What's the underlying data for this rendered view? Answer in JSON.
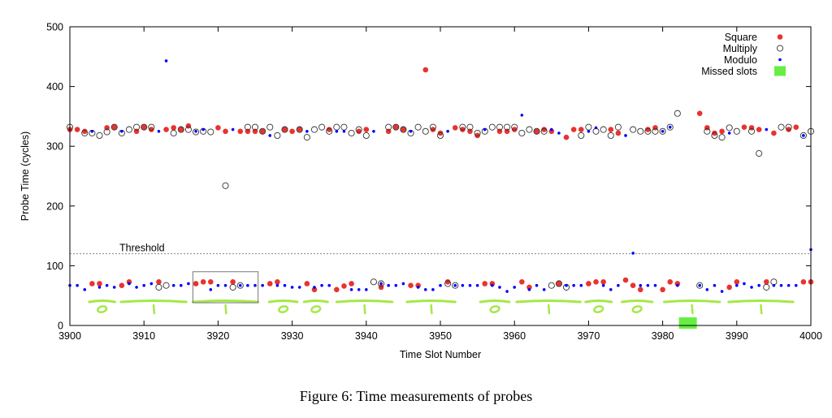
{
  "chart_data": {
    "type": "scatter",
    "title": "",
    "xlabel": "Time Slot Number",
    "ylabel": "Probe Time (cycles)",
    "xlim": [
      3900,
      4000
    ],
    "ylim": [
      0,
      500
    ],
    "x_ticks": [
      "3900",
      "3910",
      "3920",
      "3930",
      "3940",
      "3950",
      "3960",
      "3970",
      "3980",
      "3990",
      "4000"
    ],
    "y_ticks": [
      "0",
      "100",
      "200",
      "300",
      "400",
      "500"
    ],
    "grid": false,
    "legend_position": "top-right",
    "threshold": {
      "label": "Threshold",
      "value": 120
    },
    "series": [
      {
        "name": "Square",
        "marker": "filled-circle",
        "color": "#e8332f",
        "points": [
          [
            3900,
            328
          ],
          [
            3901,
            328
          ],
          [
            3902,
            325
          ],
          [
            3905,
            331
          ],
          [
            3906,
            332
          ],
          [
            3909,
            325
          ],
          [
            3910,
            332
          ],
          [
            3911,
            328
          ],
          [
            3913,
            328
          ],
          [
            3914,
            331
          ],
          [
            3915,
            328
          ],
          [
            3916,
            334
          ],
          [
            3920,
            331
          ],
          [
            3921,
            325
          ],
          [
            3923,
            325
          ],
          [
            3924,
            325
          ],
          [
            3925,
            325
          ],
          [
            3926,
            325
          ],
          [
            3929,
            328
          ],
          [
            3930,
            325
          ],
          [
            3931,
            328
          ],
          [
            3935,
            328
          ],
          [
            3939,
            325
          ],
          [
            3940,
            328
          ],
          [
            3943,
            325
          ],
          [
            3944,
            332
          ],
          [
            3945,
            328
          ],
          [
            3948,
            428
          ],
          [
            3949,
            328
          ],
          [
            3950,
            322
          ],
          [
            3952,
            331
          ],
          [
            3953,
            328
          ],
          [
            3954,
            325
          ],
          [
            3955,
            318
          ],
          [
            3958,
            325
          ],
          [
            3959,
            325
          ],
          [
            3960,
            328
          ],
          [
            3963,
            325
          ],
          [
            3964,
            328
          ],
          [
            3965,
            325
          ],
          [
            3967,
            315
          ],
          [
            3968,
            328
          ],
          [
            3969,
            328
          ],
          [
            3973,
            328
          ],
          [
            3974,
            322
          ],
          [
            3978,
            328
          ],
          [
            3979,
            331
          ],
          [
            3985,
            355
          ],
          [
            3986,
            331
          ],
          [
            3987,
            322
          ],
          [
            3988,
            325
          ],
          [
            3991,
            332
          ],
          [
            3992,
            331
          ],
          [
            3993,
            328
          ],
          [
            3995,
            322
          ],
          [
            3997,
            328
          ],
          [
            3998,
            332
          ],
          [
            3903,
            70
          ],
          [
            3904,
            70
          ],
          [
            3907,
            67
          ],
          [
            3908,
            73
          ],
          [
            3912,
            73
          ],
          [
            3917,
            70
          ],
          [
            3918,
            73
          ],
          [
            3919,
            73
          ],
          [
            3922,
            73
          ],
          [
            3927,
            70
          ],
          [
            3928,
            73
          ],
          [
            3932,
            70
          ],
          [
            3933,
            60
          ],
          [
            3936,
            60
          ],
          [
            3937,
            66
          ],
          [
            3938,
            70
          ],
          [
            3942,
            64
          ],
          [
            3946,
            67
          ],
          [
            3947,
            67
          ],
          [
            3951,
            73
          ],
          [
            3956,
            70
          ],
          [
            3957,
            70
          ],
          [
            3961,
            73
          ],
          [
            3962,
            64
          ],
          [
            3966,
            70
          ],
          [
            3970,
            70
          ],
          [
            3971,
            73
          ],
          [
            3972,
            73
          ],
          [
            3975,
            76
          ],
          [
            3976,
            67
          ],
          [
            3977,
            60
          ],
          [
            3980,
            60
          ],
          [
            3981,
            73
          ],
          [
            3982,
            70
          ],
          [
            3989,
            64
          ],
          [
            3990,
            73
          ],
          [
            3994,
            73
          ],
          [
            3999,
            73
          ],
          [
            4000,
            73
          ]
        ]
      },
      {
        "name": "Multiply",
        "marker": "open-circle",
        "color": "#333333",
        "points": [
          [
            3900,
            332
          ],
          [
            3902,
            322
          ],
          [
            3903,
            322
          ],
          [
            3904,
            318
          ],
          [
            3905,
            324
          ],
          [
            3906,
            332
          ],
          [
            3907,
            322
          ],
          [
            3908,
            328
          ],
          [
            3909,
            332
          ],
          [
            3910,
            332
          ],
          [
            3911,
            332
          ],
          [
            3914,
            322
          ],
          [
            3915,
            328
          ],
          [
            3916,
            328
          ],
          [
            3917,
            324
          ],
          [
            3918,
            325
          ],
          [
            3919,
            324
          ],
          [
            3921,
            234
          ],
          [
            3924,
            332
          ],
          [
            3925,
            332
          ],
          [
            3926,
            325
          ],
          [
            3927,
            332
          ],
          [
            3928,
            318
          ],
          [
            3929,
            328
          ],
          [
            3931,
            328
          ],
          [
            3932,
            315
          ],
          [
            3933,
            328
          ],
          [
            3934,
            332
          ],
          [
            3935,
            325
          ],
          [
            3936,
            332
          ],
          [
            3937,
            332
          ],
          [
            3938,
            322
          ],
          [
            3939,
            328
          ],
          [
            3940,
            318
          ],
          [
            3943,
            332
          ],
          [
            3944,
            332
          ],
          [
            3945,
            328
          ],
          [
            3946,
            322
          ],
          [
            3947,
            332
          ],
          [
            3948,
            325
          ],
          [
            3949,
            332
          ],
          [
            3950,
            318
          ],
          [
            3953,
            332
          ],
          [
            3954,
            332
          ],
          [
            3955,
            322
          ],
          [
            3956,
            325
          ],
          [
            3957,
            332
          ],
          [
            3958,
            332
          ],
          [
            3959,
            332
          ],
          [
            3960,
            332
          ],
          [
            3961,
            322
          ],
          [
            3962,
            328
          ],
          [
            3963,
            325
          ],
          [
            3964,
            325
          ],
          [
            3969,
            318
          ],
          [
            3970,
            332
          ],
          [
            3971,
            325
          ],
          [
            3972,
            328
          ],
          [
            3973,
            318
          ],
          [
            3974,
            332
          ],
          [
            3976,
            328
          ],
          [
            3977,
            325
          ],
          [
            3978,
            325
          ],
          [
            3979,
            325
          ],
          [
            3980,
            325
          ],
          [
            3981,
            332
          ],
          [
            3982,
            355
          ],
          [
            3986,
            325
          ],
          [
            3987,
            318
          ],
          [
            3988,
            315
          ],
          [
            3989,
            331
          ],
          [
            3990,
            325
          ],
          [
            3992,
            325
          ],
          [
            3993,
            288
          ],
          [
            3996,
            332
          ],
          [
            3997,
            332
          ],
          [
            3999,
            318
          ],
          [
            4000,
            325
          ],
          [
            3912,
            64
          ],
          [
            3913,
            67
          ],
          [
            3922,
            64
          ],
          [
            3923,
            67
          ],
          [
            3941,
            73
          ],
          [
            3942,
            70
          ],
          [
            3951,
            70
          ],
          [
            3952,
            67
          ],
          [
            3965,
            67
          ],
          [
            3966,
            70
          ],
          [
            3967,
            64
          ],
          [
            3985,
            67
          ],
          [
            3994,
            64
          ],
          [
            3995,
            73
          ]
        ]
      },
      {
        "name": "Modulo",
        "marker": "dot",
        "color": "#0000ff",
        "points": [
          [
            3903,
            325
          ],
          [
            3907,
            325
          ],
          [
            3912,
            325
          ],
          [
            3913,
            443
          ],
          [
            3917,
            325
          ],
          [
            3918,
            328
          ],
          [
            3922,
            328
          ],
          [
            3927,
            318
          ],
          [
            3932,
            325
          ],
          [
            3936,
            325
          ],
          [
            3937,
            325
          ],
          [
            3941,
            325
          ],
          [
            3946,
            325
          ],
          [
            3951,
            325
          ],
          [
            3956,
            328
          ],
          [
            3961,
            352
          ],
          [
            3965,
            328
          ],
          [
            3966,
            322
          ],
          [
            3970,
            325
          ],
          [
            3971,
            331
          ],
          [
            3975,
            318
          ],
          [
            3976,
            121
          ],
          [
            3980,
            325
          ],
          [
            3981,
            332
          ],
          [
            3989,
            322
          ],
          [
            3994,
            328
          ],
          [
            3999,
            318
          ],
          [
            4000,
            127
          ],
          [
            3900,
            67
          ],
          [
            3901,
            67
          ],
          [
            3902,
            60
          ],
          [
            3904,
            64
          ],
          [
            3905,
            67
          ],
          [
            3906,
            64
          ],
          [
            3908,
            70
          ],
          [
            3909,
            64
          ],
          [
            3910,
            67
          ],
          [
            3911,
            70
          ],
          [
            3914,
            67
          ],
          [
            3915,
            67
          ],
          [
            3916,
            70
          ],
          [
            3919,
            60
          ],
          [
            3920,
            67
          ],
          [
            3921,
            67
          ],
          [
            3923,
            67
          ],
          [
            3924,
            67
          ],
          [
            3925,
            67
          ],
          [
            3926,
            67
          ],
          [
            3928,
            67
          ],
          [
            3929,
            67
          ],
          [
            3930,
            64
          ],
          [
            3931,
            64
          ],
          [
            3933,
            64
          ],
          [
            3934,
            67
          ],
          [
            3935,
            67
          ],
          [
            3938,
            60
          ],
          [
            3939,
            60
          ],
          [
            3940,
            60
          ],
          [
            3942,
            70
          ],
          [
            3943,
            67
          ],
          [
            3944,
            67
          ],
          [
            3945,
            70
          ],
          [
            3947,
            64
          ],
          [
            3948,
            60
          ],
          [
            3949,
            60
          ],
          [
            3950,
            67
          ],
          [
            3952,
            67
          ],
          [
            3953,
            67
          ],
          [
            3954,
            67
          ],
          [
            3955,
            67
          ],
          [
            3957,
            67
          ],
          [
            3958,
            64
          ],
          [
            3959,
            57
          ],
          [
            3960,
            64
          ],
          [
            3962,
            60
          ],
          [
            3963,
            67
          ],
          [
            3964,
            60
          ],
          [
            3967,
            67
          ],
          [
            3968,
            67
          ],
          [
            3969,
            67
          ],
          [
            3972,
            67
          ],
          [
            3973,
            60
          ],
          [
            3974,
            67
          ],
          [
            3977,
            67
          ],
          [
            3978,
            67
          ],
          [
            3979,
            67
          ],
          [
            3982,
            67
          ],
          [
            3985,
            67
          ],
          [
            3986,
            60
          ],
          [
            3987,
            67
          ],
          [
            3988,
            57
          ],
          [
            3990,
            67
          ],
          [
            3991,
            70
          ],
          [
            3992,
            64
          ],
          [
            3993,
            67
          ],
          [
            3995,
            67
          ],
          [
            3996,
            67
          ],
          [
            3997,
            67
          ],
          [
            3998,
            67
          ]
        ]
      },
      {
        "name": "Missed slots",
        "marker": "filled-square",
        "color": "#66ee44",
        "points": [
          [
            3983.4,
            0
          ]
        ]
      }
    ],
    "highlight_box": {
      "x": [
        3916.6,
        3925.4
      ],
      "y": [
        38,
        90
      ]
    },
    "annotations": {
      "color": "#a6e84a",
      "spans": [
        {
          "x": [
            3902.6,
            3906.1
          ],
          "bit": "0"
        },
        {
          "x": [
            3906.9,
            3915.7
          ],
          "bit": "1"
        },
        {
          "x": [
            3916.6,
            3925.4
          ],
          "bit": "1"
        },
        {
          "x": [
            3926.9,
            3930.7
          ],
          "bit": "0"
        },
        {
          "x": [
            3931.6,
            3934.8
          ],
          "bit": "0"
        },
        {
          "x": [
            3936.0,
            3943.5
          ],
          "bit": "1"
        },
        {
          "x": [
            3945.5,
            3952.0
          ],
          "bit": "1"
        },
        {
          "x": [
            3955.4,
            3959.3
          ],
          "bit": "0"
        },
        {
          "x": [
            3960.3,
            3968.9
          ],
          "bit": "1"
        },
        {
          "x": [
            3969.6,
            3973.1
          ],
          "bit": "0"
        },
        {
          "x": [
            3974.5,
            3978.6
          ],
          "bit": "0"
        },
        {
          "x": [
            3980.2,
            3987.7
          ],
          "bit": "1"
        },
        {
          "x": [
            3988.9,
            3997.6
          ],
          "bit": "1"
        }
      ]
    }
  },
  "caption": "Figure 6: Time measurements of probes"
}
